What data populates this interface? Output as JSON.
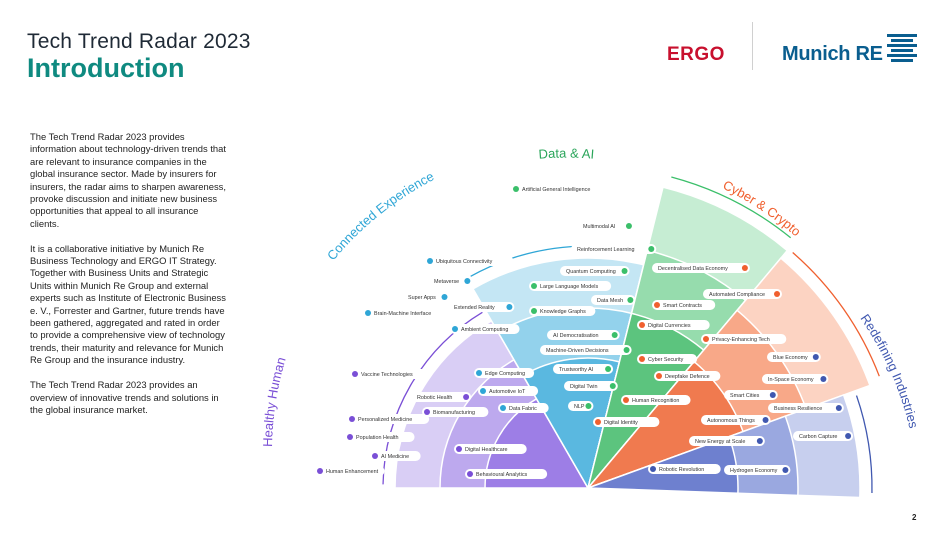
{
  "header": {
    "title": "Tech Trend Radar 2023",
    "subtitle": "Introduction"
  },
  "logos": {
    "ergo": "ERGO",
    "munich_re": "Munich RE"
  },
  "intro": {
    "paragraphs": [
      "The Tech Trend Radar 2023 provides information about technology-driven trends that are relevant to insurance companies in the global insurance sector. Made by insurers for insurers, the radar aims to sharpen awareness, provoke discussion and initiate new business opportunities that appeal to all insurance clients.",
      "It is a collaborative initiative by Munich Re Business Technology and ERGO IT Strategy. Together with Business Units and Strategic Units within Munich Re Group and external experts such as Institute of Electronic Business e. V., Forrester and Gartner, future trends have been gathered, aggregated and rated in order to provide a comprehensive view of technology trends, their maturity and relevance for Munich Re Group and the insurance industry.",
      "The Tech Trend Radar 2023 provides an overview of innovative trends and solutions in the global insurance market."
    ]
  },
  "page_number": "2",
  "colors": {
    "healthy_human": "#7a4fd6",
    "connected_experience": "#2fa6d6",
    "data_ai": "#3bbf6a",
    "cyber_crypto": "#f0602f",
    "redefining_industries": "#4058b0"
  },
  "radar": {
    "segments": [
      {
        "name": "Healthy Human",
        "trends": [
          "Vaccine Technologies",
          "Robotic Health",
          "Personalized Medicine",
          "Biomanufacturing",
          "Population Health",
          "AI Medicine",
          "Digital Healthcare",
          "Human Enhancement",
          "Behavioural Analytics"
        ]
      },
      {
        "name": "Connected Experience",
        "trends": [
          "Ubiquitous Connectivity",
          "Metaverse",
          "Super Apps",
          "Extended Reality",
          "Brain-Machine Interface",
          "Ambient Computing",
          "Edge Computing",
          "Automotive IoT",
          "Data Fabric"
        ]
      },
      {
        "name": "Data & AI",
        "trends": [
          "Artificial General Intelligence",
          "Multimodal AI",
          "Reinforcement Learning",
          "Quantum Computing",
          "Large Language Models",
          "Data Mesh",
          "Knowledge Graphs",
          "AI Democratisation",
          "Machine-Driven Decisions",
          "Trustworthy AI",
          "Digital Twin",
          "NLP"
        ]
      },
      {
        "name": "Cyber & Crypto",
        "trends": [
          "Decentralised Data Economy",
          "Automated Compliance",
          "Smart Contracts",
          "Digital Currencies",
          "Privacy-Enhancing Tech",
          "Cyber Security",
          "Deepfake Defence",
          "Human Recognition",
          "Digital Identity"
        ]
      },
      {
        "name": "Redefining Industries",
        "trends": [
          "Blue Economy",
          "In-Space Economy",
          "Smart Cities",
          "Business Resilience",
          "Autonomous Things",
          "Carbon Capture",
          "New Energy at Scale",
          "Robotic Revolution",
          "Hydrogen Economy"
        ]
      }
    ]
  }
}
